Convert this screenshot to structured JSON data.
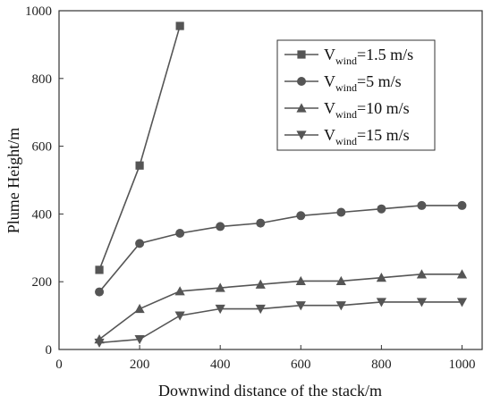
{
  "chart_data": {
    "type": "line",
    "xlabel": "Downwind distance of the stack/m",
    "ylabel": "Plume Height/m",
    "xlim": [
      0,
      1050
    ],
    "ylim": [
      0,
      1000
    ],
    "x_ticks": [
      0,
      200,
      400,
      600,
      800,
      1000
    ],
    "y_ticks": [
      0,
      200,
      400,
      600,
      800,
      1000
    ],
    "legend_position": "top-right",
    "grid": false,
    "series": [
      {
        "name": "Vwind=1.5 m/s",
        "legend_main": "V",
        "legend_sub": "wind",
        "legend_rest": "=1.5 m/s",
        "marker": "square",
        "color": "#555555",
        "x": [
          100,
          200,
          300
        ],
        "y": [
          235,
          543,
          955
        ]
      },
      {
        "name": "Vwind=5 m/s",
        "legend_main": "V",
        "legend_sub": "wind",
        "legend_rest": "=5 m/s",
        "marker": "circle",
        "color": "#555555",
        "x": [
          100,
          200,
          300,
          400,
          500,
          600,
          700,
          800,
          900,
          1000
        ],
        "y": [
          170,
          313,
          343,
          363,
          373,
          395,
          405,
          415,
          425,
          425
        ]
      },
      {
        "name": "Vwind=10 m/s",
        "legend_main": "V",
        "legend_sub": "wind",
        "legend_rest": "=10 m/s",
        "marker": "triangle-up",
        "color": "#555555",
        "x": [
          100,
          200,
          300,
          400,
          500,
          600,
          700,
          800,
          900,
          1000
        ],
        "y": [
          30,
          120,
          172,
          182,
          192,
          202,
          202,
          212,
          222,
          222
        ]
      },
      {
        "name": "Vwind=15 m/s",
        "legend_main": "V",
        "legend_sub": "wind",
        "legend_rest": "=15 m/s",
        "marker": "triangle-down",
        "color": "#555555",
        "x": [
          100,
          200,
          300,
          400,
          500,
          600,
          700,
          800,
          900,
          1000
        ],
        "y": [
          20,
          30,
          100,
          120,
          120,
          130,
          130,
          140,
          140,
          140
        ]
      }
    ]
  }
}
